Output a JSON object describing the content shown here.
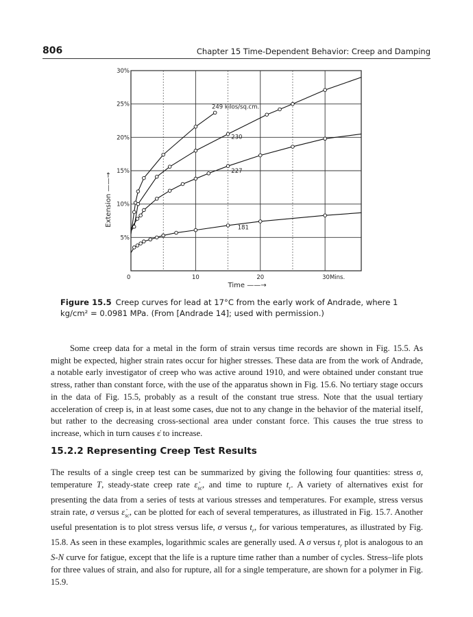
{
  "header": {
    "page_number": "806",
    "running_title": "Chapter 15   Time-Dependent Behavior: Creep and Damping"
  },
  "chart_data": {
    "type": "line",
    "title": "",
    "xlabel": "Time ——→",
    "ylabel": "Extension ——→",
    "xlim": [
      0,
      35.6
    ],
    "ylim": [
      0,
      30
    ],
    "x_ticks": [
      0,
      10,
      20,
      30
    ],
    "x_tick_labels": [
      "0",
      "10",
      "20",
      "30Mins."
    ],
    "y_ticks": [
      5,
      10,
      15,
      20,
      25,
      30
    ],
    "y_tick_labels": [
      "5%",
      "10%",
      "15%",
      "20%",
      "25%",
      "30%"
    ],
    "grid": true,
    "grid_x": [
      5,
      10,
      15,
      20,
      25,
      30
    ],
    "grid_y": [
      5,
      10,
      15,
      20,
      25,
      30
    ],
    "marker": "open-circle",
    "series": [
      {
        "name": "249 kilos/sq.cm.",
        "line_start": [
          0,
          5.5
        ],
        "line_end": [
          13,
          23.7
        ],
        "points": [
          [
            0.5,
            8.8
          ],
          [
            0.7,
            10.2
          ],
          [
            1.1,
            11.9
          ],
          [
            2,
            13.9
          ],
          [
            5,
            17.4
          ],
          [
            10,
            21.6
          ],
          [
            13,
            23.7
          ]
        ]
      },
      {
        "name": "230",
        "line_start": [
          0,
          6
        ],
        "line_end": [
          35.6,
          29
        ],
        "points": [
          [
            0.5,
            6.6
          ],
          [
            1.1,
            10
          ],
          [
            4,
            14.1
          ],
          [
            6,
            15.6
          ],
          [
            10,
            18
          ],
          [
            15,
            20.5
          ],
          [
            21,
            23.4
          ],
          [
            23,
            24.2
          ],
          [
            25,
            25
          ],
          [
            30,
            27.1
          ]
        ]
      },
      {
        "name": "227",
        "line_start": [
          0,
          6.3
        ],
        "line_end": [
          35.6,
          20.5
        ],
        "points": [
          [
            1,
            7.8
          ],
          [
            1.5,
            8.3
          ],
          [
            2,
            9.1
          ],
          [
            4,
            10.8
          ],
          [
            6,
            12
          ],
          [
            8,
            13
          ],
          [
            10,
            13.8
          ],
          [
            12,
            14.6
          ],
          [
            15,
            15.7
          ],
          [
            20,
            17.3
          ],
          [
            25,
            18.6
          ],
          [
            30,
            19.8
          ]
        ]
      },
      {
        "name": "181",
        "line_start": [
          0,
          2.7
        ],
        "line_end": [
          35.6,
          8.7
        ],
        "points": [
          [
            0.5,
            3.5
          ],
          [
            1,
            3.8
          ],
          [
            1.5,
            4.1
          ],
          [
            2,
            4.4
          ],
          [
            3,
            4.7
          ],
          [
            4,
            5
          ],
          [
            5,
            5.3
          ],
          [
            7,
            5.7
          ],
          [
            10,
            6.1
          ],
          [
            15,
            6.8
          ],
          [
            20,
            7.4
          ],
          [
            30,
            8.3
          ]
        ]
      }
    ]
  },
  "caption": {
    "label": "Figure 15.5",
    "text": "Creep curves for lead at 17°C from the early work of Andrade, where 1 kg/cm² = 0.0981 MPa. (From [Andrade 14]; used with permission.)"
  },
  "paragraph1": "Some creep data for a metal in the form of strain versus time records are shown in Fig. 15.5. As might be expected, higher strain rates occur for higher stresses. These data are from the work of Andrade, a notable early investigator of creep who was active around 1910, and were obtained under constant true stress, rather than constant force, with the use of the apparatus shown in Fig. 15.6. No tertiary stage occurs in the data of Fig. 15.5, probably as a result of the constant true stress. Note that the usual tertiary acceleration of creep is, in at least some cases, due not to any change in the behavior of the material itself, but rather to the decreasing cross-sectional area under constant force. This causes the true stress to increase, which in turn causes ε̇ to increase.",
  "section_heading": "15.2.2 Representing Creep Test Results",
  "paragraph2": [
    {
      "t": "The results of a single creep test can be summarized by giving the following four quantities: stress "
    },
    {
      "t": "σ",
      "i": true
    },
    {
      "t": ", temperature "
    },
    {
      "t": "T",
      "i": true
    },
    {
      "t": ", steady-state creep rate "
    },
    {
      "t": "ε̇",
      "i": true,
      "sub": "sc"
    },
    {
      "t": ", and time to rupture "
    },
    {
      "t": "t",
      "i": true,
      "sub": "r"
    },
    {
      "t": ". A variety of alternatives exist for presenting the data from a series of tests at various stresses and temperatures. For example, stress versus strain rate, "
    },
    {
      "t": "σ",
      "i": true
    },
    {
      "t": " versus "
    },
    {
      "t": "ε̇",
      "i": true,
      "sub": "sc"
    },
    {
      "t": ", can be plotted for each of several temperatures, as illustrated in Fig. 15.7. Another useful presentation is to plot stress versus life, "
    },
    {
      "t": "σ",
      "i": true
    },
    {
      "t": " versus "
    },
    {
      "t": "t",
      "i": true,
      "sub": "r"
    },
    {
      "t": ", for various temperatures, as illustrated by Fig. 15.8. As seen in these examples, logarithmic scales are generally used. A "
    },
    {
      "t": "σ",
      "i": true
    },
    {
      "t": " versus "
    },
    {
      "t": "t",
      "i": true,
      "sub": "r"
    },
    {
      "t": " plot is analogous to an "
    },
    {
      "t": "S-N",
      "i": true
    },
    {
      "t": " curve for fatigue, except that the life is a rupture time rather than a number of cycles. Stress–life plots for three values of strain, and also for rupture, all for a single temperature, are shown for a polymer in Fig. 15.9."
    }
  ]
}
